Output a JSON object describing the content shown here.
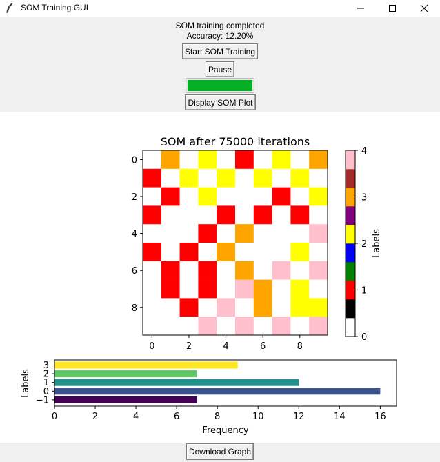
{
  "window": {
    "title": "SOM Training GUI"
  },
  "controls": {
    "status_line1": "SOM training completed",
    "status_line2": "Accuracy: 12.20%",
    "start_button": "Start SOM Training",
    "pause_button": "Pause",
    "progress_fraction": 1.0,
    "progress_color": "#06b025",
    "display_button": "Display SOM Plot"
  },
  "footer": {
    "download_button": "Download Graph"
  },
  "chart_data": [
    {
      "type": "heatmap",
      "title": "SOM after 75000 iterations",
      "xlabel": "",
      "ylabel": "",
      "x_ticks": [
        "0",
        "2",
        "4",
        "6",
        "8"
      ],
      "y_ticks": [
        "0",
        "2",
        "4",
        "6",
        "8"
      ],
      "colorbar_label": "Labels",
      "colorbar_ticks": [
        "0",
        "1",
        "2",
        "3",
        "4"
      ],
      "colormap": [
        "#ffffff",
        "#000000",
        "#ff0000",
        "#008000",
        "#0000ff",
        "#ffff00",
        "#800080",
        "#ffa500",
        "#a52a2a",
        "#ffc0cb"
      ],
      "grid": [
        [
          "#ffffff",
          "#ffa500",
          "#ffffff",
          "#ffff00",
          "#ffffff",
          "#ff0000",
          "#ffffff",
          "#ffff00",
          "#ffffff",
          "#ffa500"
        ],
        [
          "#ff0000",
          "#ffffff",
          "#ffff00",
          "#ffffff",
          "#ffff00",
          "#ffffff",
          "#ffff00",
          "#ffffff",
          "#ffff00",
          "#ffffff"
        ],
        [
          "#ffffff",
          "#ff0000",
          "#ffffff",
          "#ffff00",
          "#ffffff",
          "#ffffff",
          "#ffffff",
          "#ff0000",
          "#ffffff",
          "#ffff00"
        ],
        [
          "#ff0000",
          "#ffffff",
          "#ffffff",
          "#ffffff",
          "#ff0000",
          "#ffffff",
          "#ff0000",
          "#ffffff",
          "#ff0000",
          "#ffffff"
        ],
        [
          "#ffffff",
          "#ffffff",
          "#ffffff",
          "#ff0000",
          "#ffffff",
          "#ffa500",
          "#ffffff",
          "#ffffff",
          "#ffffff",
          "#ffc0cb"
        ],
        [
          "#ff0000",
          "#ffffff",
          "#ff0000",
          "#ffffff",
          "#ffa500",
          "#ffffff",
          "#ffffff",
          "#ffffff",
          "#ffff00",
          "#ffffff"
        ],
        [
          "#ffffff",
          "#ff0000",
          "#ffffff",
          "#ff0000",
          "#ffffff",
          "#ffa500",
          "#ffffff",
          "#ffc0cb",
          "#ffffff",
          "#ffc0cb"
        ],
        [
          "#ffffff",
          "#ff0000",
          "#ffffff",
          "#ff0000",
          "#ffffff",
          "#ffc0cb",
          "#ffa500",
          "#ffffff",
          "#ffff00",
          "#ffffff"
        ],
        [
          "#ffffff",
          "#ffffff",
          "#ff0000",
          "#ffffff",
          "#ffc0cb",
          "#ffffff",
          "#ffa500",
          "#ffffff",
          "#ffff00",
          "#ffff00"
        ],
        [
          "#ffffff",
          "#ffffff",
          "#ffffff",
          "#ffc0cb",
          "#ffffff",
          "#ffc0cb",
          "#ffffff",
          "#ffc0cb",
          "#ffffff",
          "#ffc0cb"
        ]
      ]
    },
    {
      "type": "bar",
      "orientation": "horizontal",
      "title": "",
      "xlabel": "Frequency",
      "ylabel": "Labels",
      "categories": [
        "3",
        "2",
        "1",
        "0",
        "−1"
      ],
      "values": [
        9,
        7,
        12,
        16,
        7
      ],
      "colors": [
        "#fde725",
        "#5ec962",
        "#21918c",
        "#3b528b",
        "#440154"
      ],
      "xlim": [
        0,
        16.8
      ],
      "x_ticks": [
        0,
        2,
        4,
        6,
        8,
        10,
        12,
        14,
        16
      ]
    }
  ]
}
